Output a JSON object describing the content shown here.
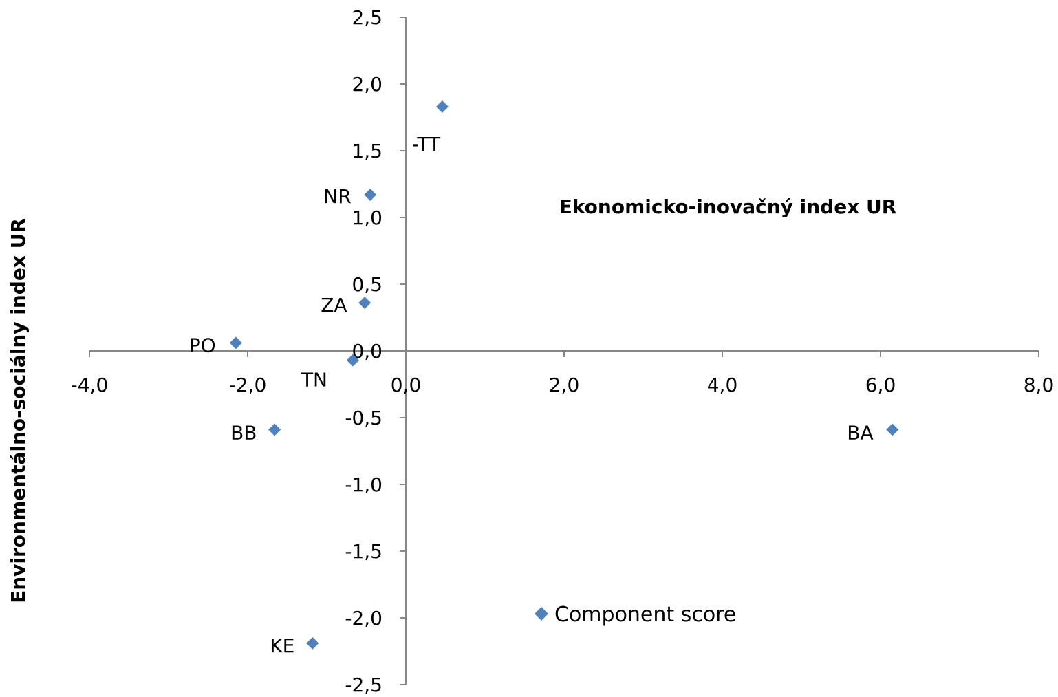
{
  "chart_data": {
    "type": "scatter",
    "title": "",
    "xlabel": "Ekonomicko-inovačný index UR",
    "ylabel": "Environmentálno-sociálny index UR",
    "xlim": [
      -4.0,
      8.0
    ],
    "ylim": [
      -2.5,
      2.5
    ],
    "x_ticks": [
      "-4,0",
      "-2,0",
      "0,0",
      "2,0",
      "4,0",
      "6,0",
      "8,0"
    ],
    "y_ticks": [
      "2,5",
      "2,0",
      "1,5",
      "1,0",
      "0,5",
      "0,0",
      "-0,5",
      "-1,0",
      "-1,5",
      "-2,0",
      "-2,5"
    ],
    "grid": false,
    "legend_position": "bottom-center",
    "marker_color": "#4F81BD",
    "series": [
      {
        "name": "Component score",
        "points": [
          {
            "label": "BA",
            "x": 6.15,
            "y": -0.59
          },
          {
            "label": "TT",
            "x": 0.46,
            "y": 1.83
          },
          {
            "label": "NR",
            "x": -0.45,
            "y": 1.17
          },
          {
            "label": "ZA",
            "x": -0.52,
            "y": 0.36
          },
          {
            "label": "PO",
            "x": -2.15,
            "y": 0.06
          },
          {
            "label": "TN",
            "x": -0.67,
            "y": -0.07
          },
          {
            "label": "BB",
            "x": -1.66,
            "y": -0.59
          },
          {
            "label": "KE",
            "x": -1.18,
            "y": -2.19
          }
        ]
      }
    ],
    "point_label_texts": {
      "BA": "BA",
      "TT": "-TT",
      "NR": "NR",
      "ZA": "ZA",
      "PO": "PO",
      "TN": "TN",
      "BB": "BB",
      "KE": "KE"
    }
  }
}
